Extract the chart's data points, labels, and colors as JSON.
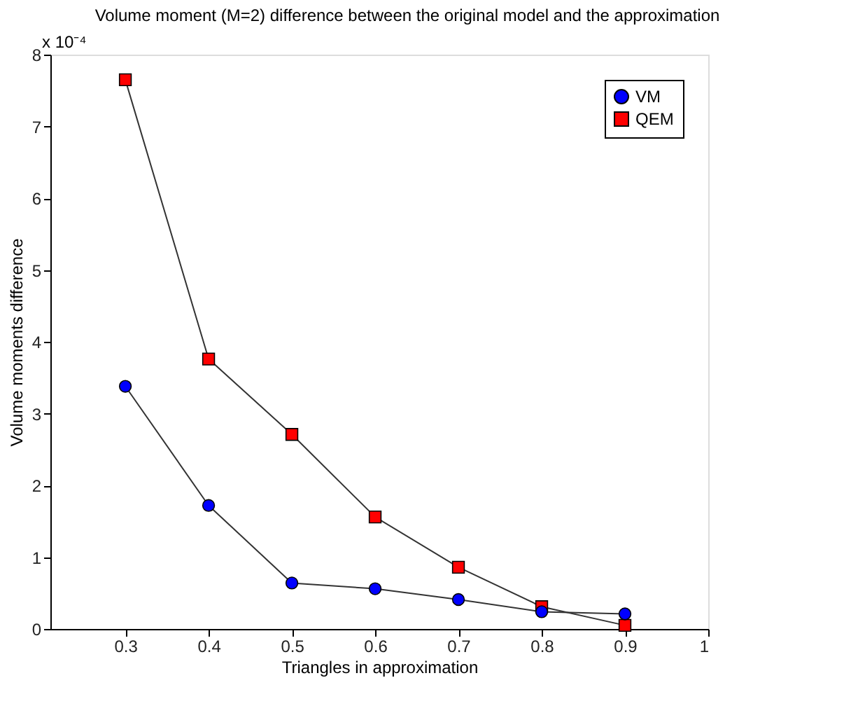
{
  "chart_data": {
    "type": "line",
    "title": "Volume moment (M=2) difference between the original model and the approximation",
    "xlabel": "Triangles in approximation",
    "ylabel": "Volume moments difference",
    "annotations": [
      "x 10⁻⁴"
    ],
    "x": [
      0.3,
      0.4,
      0.5,
      0.6,
      0.7,
      0.8,
      0.9
    ],
    "series": [
      {
        "name": "VM",
        "color": "#0000ff",
        "marker": "circle",
        "values": [
          3.38,
          1.72,
          0.64,
          0.56,
          0.41,
          0.24,
          0.21
        ]
      },
      {
        "name": "QEM",
        "color": "#ff0000",
        "marker": "square",
        "values": [
          7.65,
          3.76,
          2.71,
          1.56,
          0.86,
          0.31,
          0.05
        ]
      }
    ],
    "xlim": [
      0.21,
      1
    ],
    "xticks": [
      0.3,
      0.4,
      0.5,
      0.6,
      0.7,
      0.8,
      0.9,
      1
    ],
    "ylim": [
      0,
      8
    ],
    "yticks": [
      0,
      1,
      2,
      3,
      4,
      5,
      6,
      7,
      8
    ],
    "grid": false,
    "legend": "top right",
    "line_style": "solid"
  }
}
